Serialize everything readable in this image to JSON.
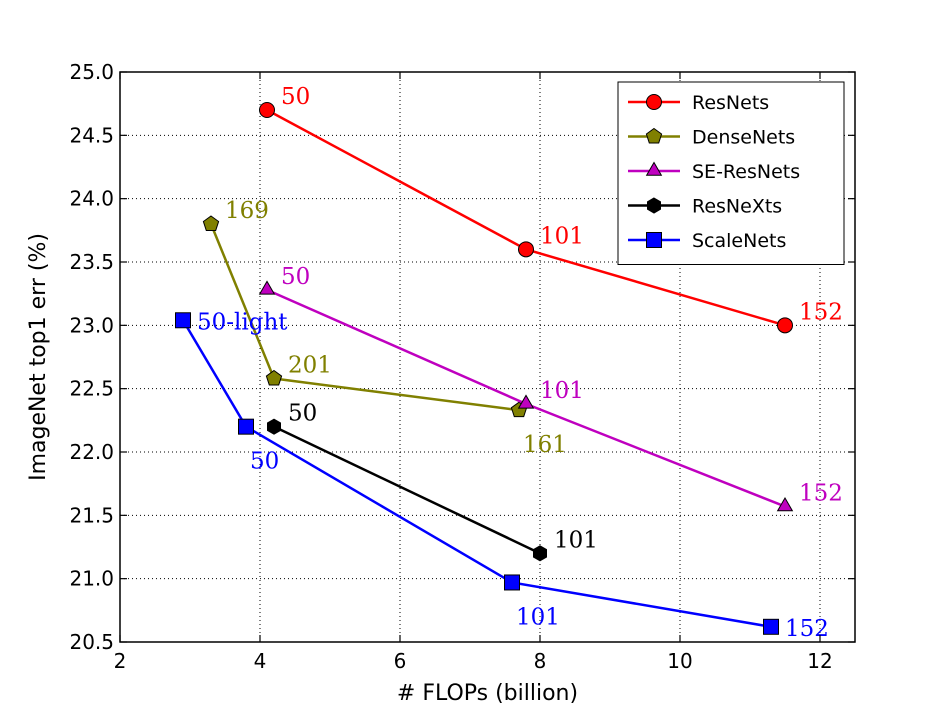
{
  "chart_data": {
    "type": "line",
    "title": "",
    "xlabel": "# FLOPs (billion)",
    "ylabel": "ImageNet top1 err (%)",
    "xlim": [
      2,
      12.5
    ],
    "ylim": [
      20.5,
      25.0
    ],
    "xticks": [
      "2",
      "4",
      "6",
      "8",
      "10",
      "12"
    ],
    "yticks": [
      "20.5",
      "21.0",
      "21.5",
      "22.0",
      "22.5",
      "23.0",
      "23.5",
      "24.0",
      "24.5",
      "25.0"
    ],
    "grid": true,
    "legend_position": "top-right",
    "series": [
      {
        "name": "ResNets",
        "color": "#ff0000",
        "marker": "circle",
        "points": [
          {
            "x": 4.1,
            "y": 24.7,
            "label": "50",
            "label_pos": "right-up"
          },
          {
            "x": 7.8,
            "y": 23.6,
            "label": "101",
            "label_pos": "right-up"
          },
          {
            "x": 11.5,
            "y": 23.0,
            "label": "152",
            "label_pos": "right-up"
          }
        ]
      },
      {
        "name": "DenseNets",
        "color": "#808000",
        "marker": "pentagon",
        "points": [
          {
            "x": 3.3,
            "y": 23.8,
            "label": "169",
            "label_pos": "right-up"
          },
          {
            "x": 4.2,
            "y": 22.58,
            "label": "201",
            "label_pos": "right-up"
          },
          {
            "x": 7.7,
            "y": 22.33,
            "label": "161",
            "label_pos": "below-right"
          }
        ]
      },
      {
        "name": "SE-ResNets",
        "color": "#bf00bf",
        "marker": "triangle",
        "points": [
          {
            "x": 4.1,
            "y": 23.28,
            "label": "50",
            "label_pos": "right-up"
          },
          {
            "x": 7.8,
            "y": 22.38,
            "label": "101",
            "label_pos": "right-up"
          },
          {
            "x": 11.5,
            "y": 21.57,
            "label": "152",
            "label_pos": "right-up"
          }
        ]
      },
      {
        "name": "ResNeXts",
        "color": "#000000",
        "marker": "hexagon",
        "points": [
          {
            "x": 4.2,
            "y": 22.2,
            "label": "50",
            "label_pos": "right-up"
          },
          {
            "x": 8.0,
            "y": 21.2,
            "label": "101",
            "label_pos": "right-up"
          }
        ]
      },
      {
        "name": "ScaleNets",
        "color": "#0000ff",
        "marker": "square",
        "points": [
          {
            "x": 2.9,
            "y": 23.04,
            "label": "50-light",
            "label_pos": "right"
          },
          {
            "x": 3.8,
            "y": 22.2,
            "label": "50",
            "label_pos": "below-right"
          },
          {
            "x": 7.6,
            "y": 20.97,
            "label": "101",
            "label_pos": "below-right"
          },
          {
            "x": 11.3,
            "y": 20.62,
            "label": "152",
            "label_pos": "right"
          }
        ]
      }
    ]
  }
}
